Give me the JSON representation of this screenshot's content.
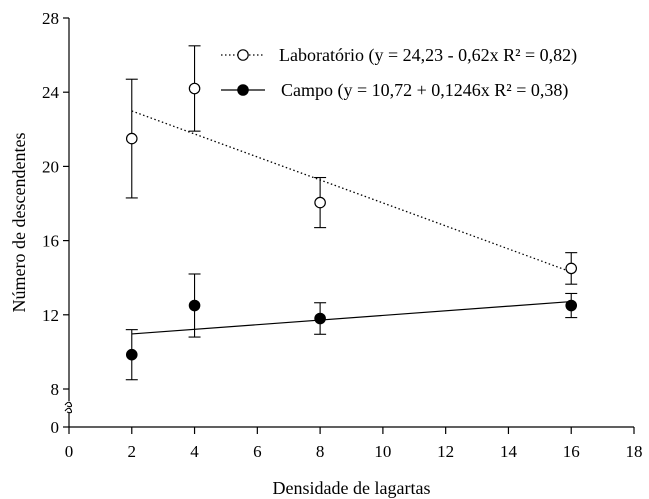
{
  "chart_data": {
    "type": "scatter",
    "title": "",
    "xlabel": "Densidade de lagartas",
    "ylabel": "Número de descendentes",
    "xlim": [
      0,
      18
    ],
    "ylim": [
      0,
      28
    ],
    "axis_break": [
      0,
      8
    ],
    "x_ticks": [
      0,
      2,
      4,
      6,
      8,
      10,
      12,
      14,
      16,
      18
    ],
    "y_ticks": [
      0,
      8,
      12,
      16,
      20,
      24,
      28
    ],
    "x_tick_labels": [
      "0",
      "2",
      "4",
      "6",
      "8",
      "10",
      "12",
      "14",
      "16",
      "18"
    ],
    "y_tick_labels": [
      "0",
      "8",
      "12",
      "16",
      "20",
      "24",
      "28"
    ],
    "grid": false,
    "legend_position": "top-right",
    "series": [
      {
        "name": "Laboratório",
        "legend_label": "Laboratório (y = 24,23 - 0,62x   R² = 0,82)",
        "marker": "open-circle",
        "line_style": "dotted",
        "color": "#000000",
        "x": [
          2,
          4,
          8,
          16
        ],
        "y": [
          21.5,
          24.2,
          18.05,
          14.5
        ],
        "error": [
          3.2,
          2.3,
          1.35,
          0.85
        ],
        "fit": {
          "intercept": 24.23,
          "slope": -0.62,
          "r2": 0.82
        }
      },
      {
        "name": "Campo",
        "legend_label": "Campo (y = 10,72 + 0,1246x   R² = 0,38)",
        "marker": "filled-circle",
        "line_style": "solid",
        "color": "#000000",
        "x": [
          2,
          4,
          8,
          16
        ],
        "y": [
          9.85,
          12.5,
          11.8,
          12.5
        ],
        "error": [
          1.35,
          1.7,
          0.85,
          0.65
        ],
        "fit": {
          "intercept": 10.72,
          "slope": 0.1246,
          "r2": 0.38
        }
      }
    ]
  }
}
